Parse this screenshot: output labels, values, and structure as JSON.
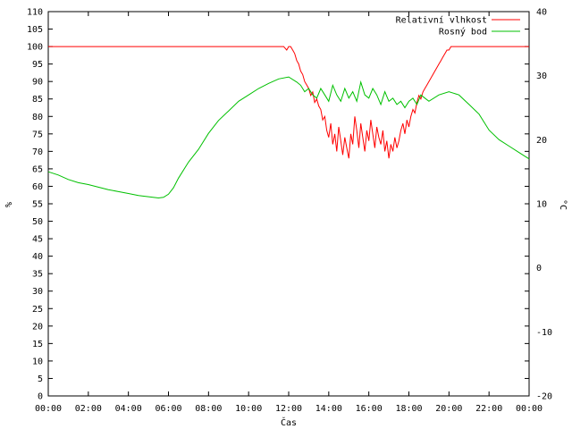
{
  "chart_data": {
    "type": "line",
    "title": "",
    "xlabel": "Čas",
    "ylabel_left": "%",
    "ylabel_right": "°C",
    "xlim": [
      0,
      24
    ],
    "ylim_left": [
      0,
      110
    ],
    "ylim_right": [
      -20,
      40
    ],
    "x_ticks": [
      0,
      2,
      4,
      6,
      8,
      10,
      12,
      14,
      16,
      18,
      20,
      22,
      24
    ],
    "x_tick_labels": [
      "00:00",
      "02:00",
      "04:00",
      "06:00",
      "08:00",
      "10:00",
      "12:00",
      "14:00",
      "16:00",
      "18:00",
      "20:00",
      "22:00",
      "00:00"
    ],
    "y_left_ticks": [
      0,
      5,
      10,
      15,
      20,
      25,
      30,
      35,
      40,
      45,
      50,
      55,
      60,
      65,
      70,
      75,
      80,
      85,
      90,
      95,
      100,
      105,
      110
    ],
    "y_right_ticks": [
      -20,
      -10,
      0,
      10,
      20,
      30,
      40
    ],
    "grid": false,
    "legend_position": "top-right",
    "series": [
      {
        "name": "Relativní vlhkost",
        "axis": "left",
        "color": "#ff0000",
        "x": [
          0,
          11.75,
          11.9,
          12.0,
          12.1,
          12.2,
          12.3,
          12.4,
          12.5,
          12.6,
          12.7,
          12.8,
          12.9,
          13.0,
          13.1,
          13.2,
          13.3,
          13.4,
          13.5,
          13.6,
          13.7,
          13.8,
          13.9,
          14.0,
          14.1,
          14.2,
          14.3,
          14.4,
          14.5,
          14.6,
          14.7,
          14.8,
          14.9,
          15.0,
          15.1,
          15.2,
          15.3,
          15.4,
          15.5,
          15.6,
          15.7,
          15.8,
          15.9,
          16.0,
          16.1,
          16.2,
          16.3,
          16.4,
          16.5,
          16.6,
          16.7,
          16.8,
          16.9,
          17.0,
          17.1,
          17.2,
          17.3,
          17.4,
          17.5,
          17.6,
          17.7,
          17.8,
          17.9,
          18.0,
          18.1,
          18.2,
          18.3,
          18.4,
          18.5,
          18.6,
          18.7,
          18.8,
          18.9,
          19.0,
          19.1,
          19.2,
          19.3,
          19.4,
          19.5,
          19.6,
          19.7,
          19.8,
          19.9,
          20.0,
          20.1,
          20.2,
          24
        ],
        "values": [
          100,
          100,
          99,
          100,
          100,
          99,
          98,
          96,
          95,
          93,
          92,
          90,
          89,
          88,
          86,
          87,
          84,
          85,
          83,
          82,
          79,
          80,
          76,
          74,
          78,
          72,
          75,
          70,
          77,
          73,
          69,
          74,
          71,
          68,
          75,
          72,
          80,
          76,
          71,
          78,
          74,
          70,
          76,
          73,
          79,
          75,
          71,
          77,
          74,
          72,
          76,
          70,
          73,
          68,
          72,
          70,
          74,
          71,
          73,
          76,
          78,
          75,
          79,
          77,
          80,
          82,
          81,
          84,
          86,
          85,
          87,
          88,
          89,
          90,
          91,
          92,
          93,
          94,
          95,
          96,
          97,
          98,
          99,
          99,
          100,
          100,
          100
        ]
      },
      {
        "name": "Rosný bod",
        "axis": "right",
        "color": "#00c000",
        "x": [
          0,
          0.5,
          1,
          1.5,
          2,
          2.5,
          3,
          3.5,
          4,
          4.5,
          5,
          5.5,
          5.75,
          6,
          6.25,
          6.5,
          7,
          7.5,
          8,
          8.5,
          9,
          9.5,
          10,
          10.5,
          11,
          11.5,
          12,
          12.4,
          12.6,
          12.8,
          13.0,
          13.2,
          13.4,
          13.6,
          13.8,
          14.0,
          14.2,
          14.4,
          14.6,
          14.8,
          15.0,
          15.2,
          15.4,
          15.6,
          15.8,
          16.0,
          16.2,
          16.4,
          16.6,
          16.8,
          17.0,
          17.2,
          17.4,
          17.6,
          17.8,
          18.0,
          18.2,
          18.4,
          18.6,
          18.8,
          19.0,
          19.5,
          20.0,
          20.5,
          21,
          21.5,
          22,
          22.5,
          23,
          23.5,
          24
        ],
        "values": [
          15.0,
          14.5,
          13.8,
          13.3,
          13.0,
          12.6,
          12.2,
          11.9,
          11.6,
          11.3,
          11.1,
          10.9,
          11.0,
          11.5,
          12.5,
          14.0,
          16.5,
          18.5,
          21.0,
          23.0,
          24.5,
          26.0,
          27.0,
          28.0,
          28.8,
          29.5,
          29.8,
          29.0,
          28.5,
          27.5,
          28.0,
          27.0,
          26.5,
          28.0,
          27.0,
          26.0,
          28.5,
          27.0,
          26.0,
          28.0,
          26.5,
          27.5,
          26.0,
          29.0,
          27.0,
          26.5,
          28.0,
          27.0,
          25.5,
          27.5,
          26.0,
          26.5,
          25.5,
          26.0,
          25.0,
          26.0,
          26.5,
          25.5,
          27.0,
          26.5,
          26.0,
          27.0,
          27.5,
          27.0,
          25.5,
          24.0,
          21.5,
          20.0,
          19.0,
          18.0,
          17.0
        ]
      }
    ]
  }
}
